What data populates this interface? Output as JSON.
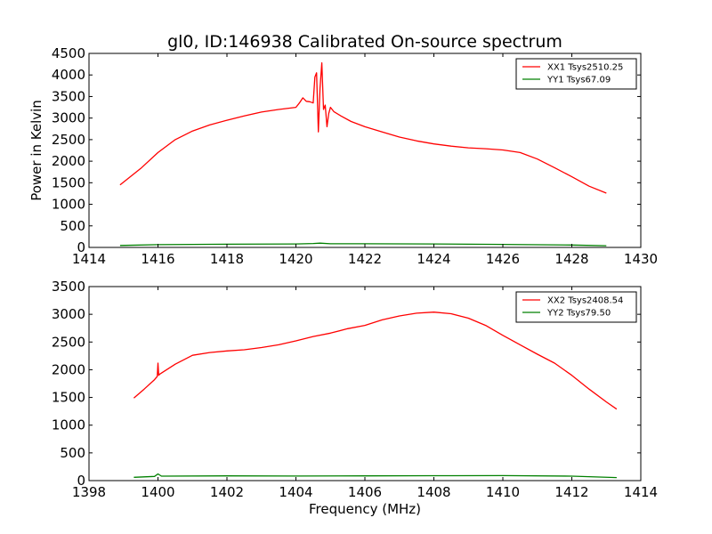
{
  "figure": {
    "title": "gl0, ID:146938 Calibrated On-source spectrum",
    "xlabel": "Frequency (MHz)",
    "ylabel": "Power in Kelvin"
  },
  "colors": {
    "xx": "#ff0000",
    "yy": "#008000"
  },
  "chart_data": [
    {
      "type": "line",
      "xlim": [
        1414,
        1430
      ],
      "ylim": [
        0,
        4500
      ],
      "xticks": [
        "1414",
        "1416",
        "1418",
        "1420",
        "1422",
        "1424",
        "1426",
        "1428",
        "1430"
      ],
      "xtick_values": [
        1414,
        1416,
        1418,
        1420,
        1422,
        1424,
        1426,
        1428,
        1430
      ],
      "yticks": [
        "0",
        "500",
        "1000",
        "1500",
        "2000",
        "2500",
        "3000",
        "3500",
        "4000",
        "4500"
      ],
      "ytick_values": [
        0,
        500,
        1000,
        1500,
        2000,
        2500,
        3000,
        3500,
        4000,
        4500
      ],
      "legend_position": "top-right",
      "series": [
        {
          "name": "XX1 Tsys2510.25",
          "color": "#ff0000",
          "x": [
            1414.9,
            1415.5,
            1416,
            1416.5,
            1417,
            1417.5,
            1418,
            1418.5,
            1419,
            1419.5,
            1420,
            1420.1,
            1420.2,
            1420.3,
            1420.4,
            1420.5,
            1420.55,
            1420.6,
            1420.65,
            1420.7,
            1420.75,
            1420.8,
            1420.85,
            1420.9,
            1420.95,
            1421,
            1421.1,
            1421.3,
            1421.6,
            1422,
            1422.5,
            1423,
            1423.5,
            1424,
            1424.5,
            1425,
            1425.5,
            1426,
            1426.5,
            1427,
            1427.5,
            1428,
            1428.5,
            1429
          ],
          "y": [
            1450,
            1830,
            2200,
            2500,
            2700,
            2840,
            2950,
            3050,
            3140,
            3200,
            3250,
            3350,
            3470,
            3390,
            3380,
            3350,
            3950,
            4050,
            2680,
            3700,
            4280,
            3200,
            3300,
            2800,
            3100,
            3250,
            3150,
            3050,
            2920,
            2800,
            2680,
            2560,
            2470,
            2400,
            2350,
            2310,
            2290,
            2260,
            2200,
            2050,
            1850,
            1640,
            1420,
            1260
          ]
        },
        {
          "name": "YY1 Tsys67.09",
          "color": "#008000",
          "x": [
            1414.9,
            1416,
            1418,
            1420,
            1420.5,
            1420.7,
            1421,
            1422,
            1424,
            1426,
            1428,
            1429
          ],
          "y": [
            45,
            65,
            75,
            80,
            90,
            100,
            85,
            85,
            80,
            70,
            55,
            40
          ]
        }
      ]
    },
    {
      "type": "line",
      "xlim": [
        1398,
        1414
      ],
      "ylim": [
        0,
        3500
      ],
      "xticks": [
        "1398",
        "1400",
        "1402",
        "1404",
        "1406",
        "1408",
        "1410",
        "1412",
        "1414"
      ],
      "xtick_values": [
        1398,
        1400,
        1402,
        1404,
        1406,
        1408,
        1410,
        1412,
        1414
      ],
      "yticks": [
        "0",
        "500",
        "1000",
        "1500",
        "2000",
        "2500",
        "3000",
        "3500"
      ],
      "ytick_values": [
        0,
        500,
        1000,
        1500,
        2000,
        2500,
        3000,
        3500
      ],
      "legend_position": "top-right",
      "series": [
        {
          "name": "XX2 Tsys2408.54",
          "color": "#ff0000",
          "x": [
            1399.3,
            1399.6,
            1399.9,
            1399.98,
            1400.0,
            1400.02,
            1400.05,
            1400.5,
            1401,
            1401.5,
            1402,
            1402.5,
            1403,
            1403.5,
            1404,
            1404.5,
            1405,
            1405.5,
            1406,
            1406.5,
            1407,
            1407.5,
            1408,
            1408.5,
            1409,
            1409.5,
            1410,
            1410.5,
            1411,
            1411.5,
            1412,
            1412.5,
            1413,
            1413.3
          ],
          "y": [
            1490,
            1650,
            1820,
            1880,
            2120,
            1900,
            1920,
            2100,
            2260,
            2310,
            2340,
            2360,
            2400,
            2450,
            2520,
            2600,
            2660,
            2740,
            2800,
            2900,
            2970,
            3020,
            3040,
            3010,
            2930,
            2800,
            2620,
            2450,
            2280,
            2120,
            1900,
            1650,
            1420,
            1290
          ]
        },
        {
          "name": "YY2 Tsys79.50",
          "color": "#008000",
          "x": [
            1399.3,
            1399.9,
            1400.0,
            1400.1,
            1402,
            1404,
            1406,
            1408,
            1410,
            1412,
            1413.3
          ],
          "y": [
            60,
            75,
            120,
            80,
            85,
            82,
            85,
            88,
            90,
            80,
            55
          ]
        }
      ]
    }
  ]
}
